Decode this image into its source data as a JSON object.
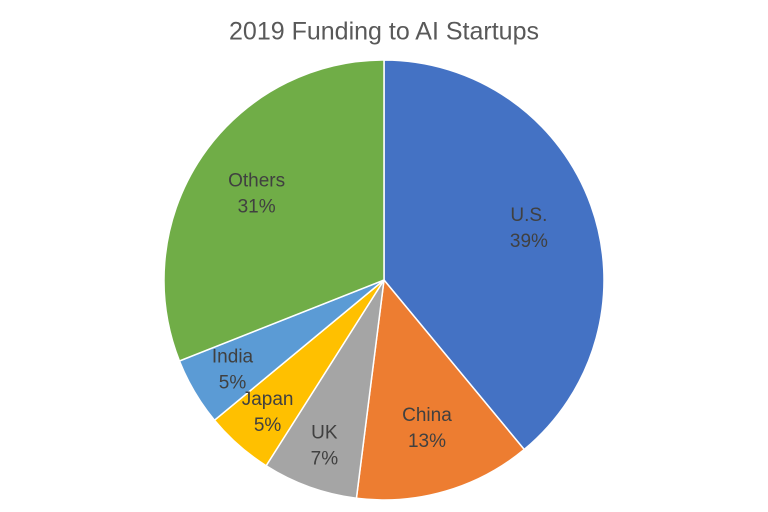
{
  "chart_data": {
    "type": "pie",
    "title": "2019 Funding to AI Startups",
    "categories": [
      "U.S.",
      "China",
      "UK",
      "Japan",
      "India",
      "Others"
    ],
    "values": [
      39,
      13,
      7,
      5,
      5,
      31
    ],
    "value_labels": [
      "39%",
      "13%",
      "7%",
      "5%",
      "5%",
      "31%"
    ],
    "colors": [
      "#4472c4",
      "#ed7d31",
      "#a5a5a5",
      "#ffc000",
      "#5b9bd5",
      "#70ad47"
    ]
  }
}
